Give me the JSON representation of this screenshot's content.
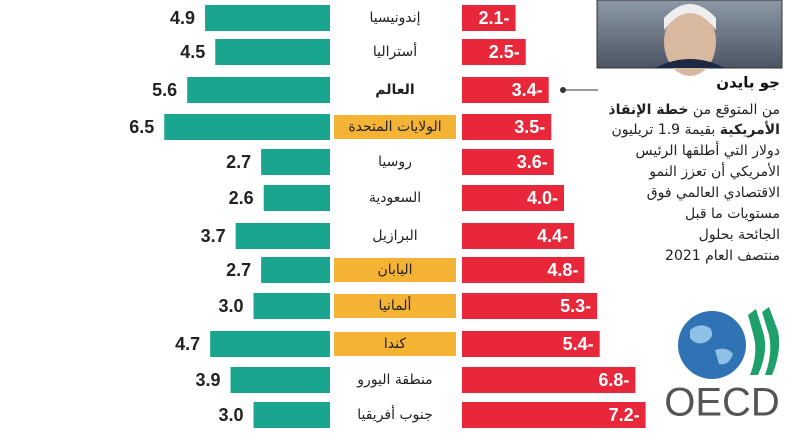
{
  "chart_data": {
    "type": "bar",
    "categories": [
      "إندونيسيا",
      "أستراليا",
      "العالم",
      "الولايات المتحدة",
      "روسيا",
      "السعودية",
      "البرازيل",
      "اليابان",
      "ألمانيا",
      "كندا",
      "منطقة اليورو",
      "جنوب أفريقيا"
    ],
    "highlight": [
      false,
      false,
      false,
      true,
      false,
      false,
      false,
      true,
      true,
      true,
      false,
      false
    ],
    "bold": [
      false,
      false,
      true,
      false,
      false,
      false,
      false,
      false,
      false,
      false,
      false,
      false
    ],
    "series": [
      {
        "color": "#1aa58f",
        "values": [
          4.9,
          4.5,
          5.6,
          6.5,
          2.7,
          2.6,
          3.7,
          2.7,
          3.0,
          4.7,
          3.9,
          3.0
        ],
        "value_labels": [
          "4.9",
          "4.5",
          "5.6",
          "6.5",
          "2.7",
          "2.6",
          "3.7",
          "2.7",
          "3.0",
          "4.7",
          "3.9",
          "3.0"
        ]
      },
      {
        "color": "#e8283a",
        "values": [
          -2.1,
          -2.5,
          -3.4,
          -3.5,
          -3.6,
          -4.0,
          -4.4,
          -4.8,
          -5.3,
          -5.4,
          -6.8,
          -7.2
        ],
        "value_labels": [
          "2.1-",
          "2.5-",
          "3.4-",
          "3.5-",
          "3.6-",
          "4.0-",
          "4.4-",
          "4.8-",
          "5.3-",
          "5.4-",
          "6.8-",
          "7.2-"
        ]
      }
    ],
    "annotation": {
      "name": "جو بايدن",
      "lines": [
        [
          "من المتوقع من ",
          "خطة الإنقاذ"
        ],
        [
          "الأمريكية",
          " بقيمة 1.9 تريليون"
        ],
        [
          "دولار التي أطلقها الرئيس"
        ],
        [
          "الأمريكي أن تعزز النمو"
        ],
        [
          "الاقتصادي العالمي فوق"
        ],
        [
          "مستويات ما قبل"
        ],
        [
          "الجائحة بحلول"
        ],
        [
          "منتصف العام 2021"
        ]
      ]
    },
    "logo_text": "OECD"
  }
}
